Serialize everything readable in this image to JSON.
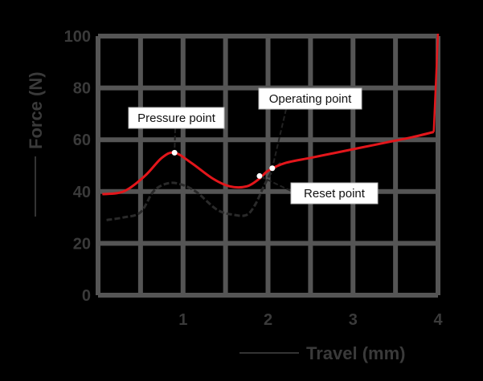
{
  "chart_data": {
    "type": "line",
    "title": "",
    "xlabel": "Travel (mm)",
    "ylabel": "Force (N)",
    "xlim": [
      0,
      4
    ],
    "ylim": [
      0,
      100
    ],
    "x_ticks": [
      "1",
      "2",
      "3",
      "4"
    ],
    "y_ticks": [
      "0",
      "20",
      "40",
      "60",
      "80",
      "100"
    ],
    "grid": true,
    "colors": {
      "background": "#000000",
      "grid": "#555555",
      "press_curve": "#e3161b",
      "release_curve": "#2a2a2a",
      "label_box": "#ffffff"
    },
    "series": [
      {
        "name": "",
        "color": "#e3161b",
        "x": [
          0.05,
          0.3,
          0.55,
          0.75,
          0.9,
          1.1,
          1.35,
          1.55,
          1.75,
          1.9,
          2.0,
          2.2,
          2.5,
          2.8,
          3.1,
          3.4,
          3.7,
          3.95,
          4.0
        ],
        "y": [
          39,
          40,
          46,
          53,
          55,
          51,
          45,
          42,
          42,
          45,
          48,
          51,
          53,
          55,
          57,
          59,
          61,
          63,
          100
        ]
      },
      {
        "name": "",
        "color": "#2a2a2a",
        "x": [
          0.1,
          0.3,
          0.5,
          0.65,
          0.8,
          0.95,
          1.15,
          1.4,
          1.6,
          1.75,
          1.85,
          1.95,
          2.05,
          2.15
        ],
        "y": [
          29,
          30,
          32,
          40,
          43,
          43,
          40,
          33,
          31,
          31,
          35,
          42,
          48,
          51
        ]
      }
    ],
    "annotations": [
      {
        "text": "Pressure point",
        "x": 0.9,
        "y": 55
      },
      {
        "text": "Operating point",
        "x": 2.05,
        "y": 49
      },
      {
        "text": "Reset point",
        "x": 1.9,
        "y": 46
      }
    ]
  }
}
